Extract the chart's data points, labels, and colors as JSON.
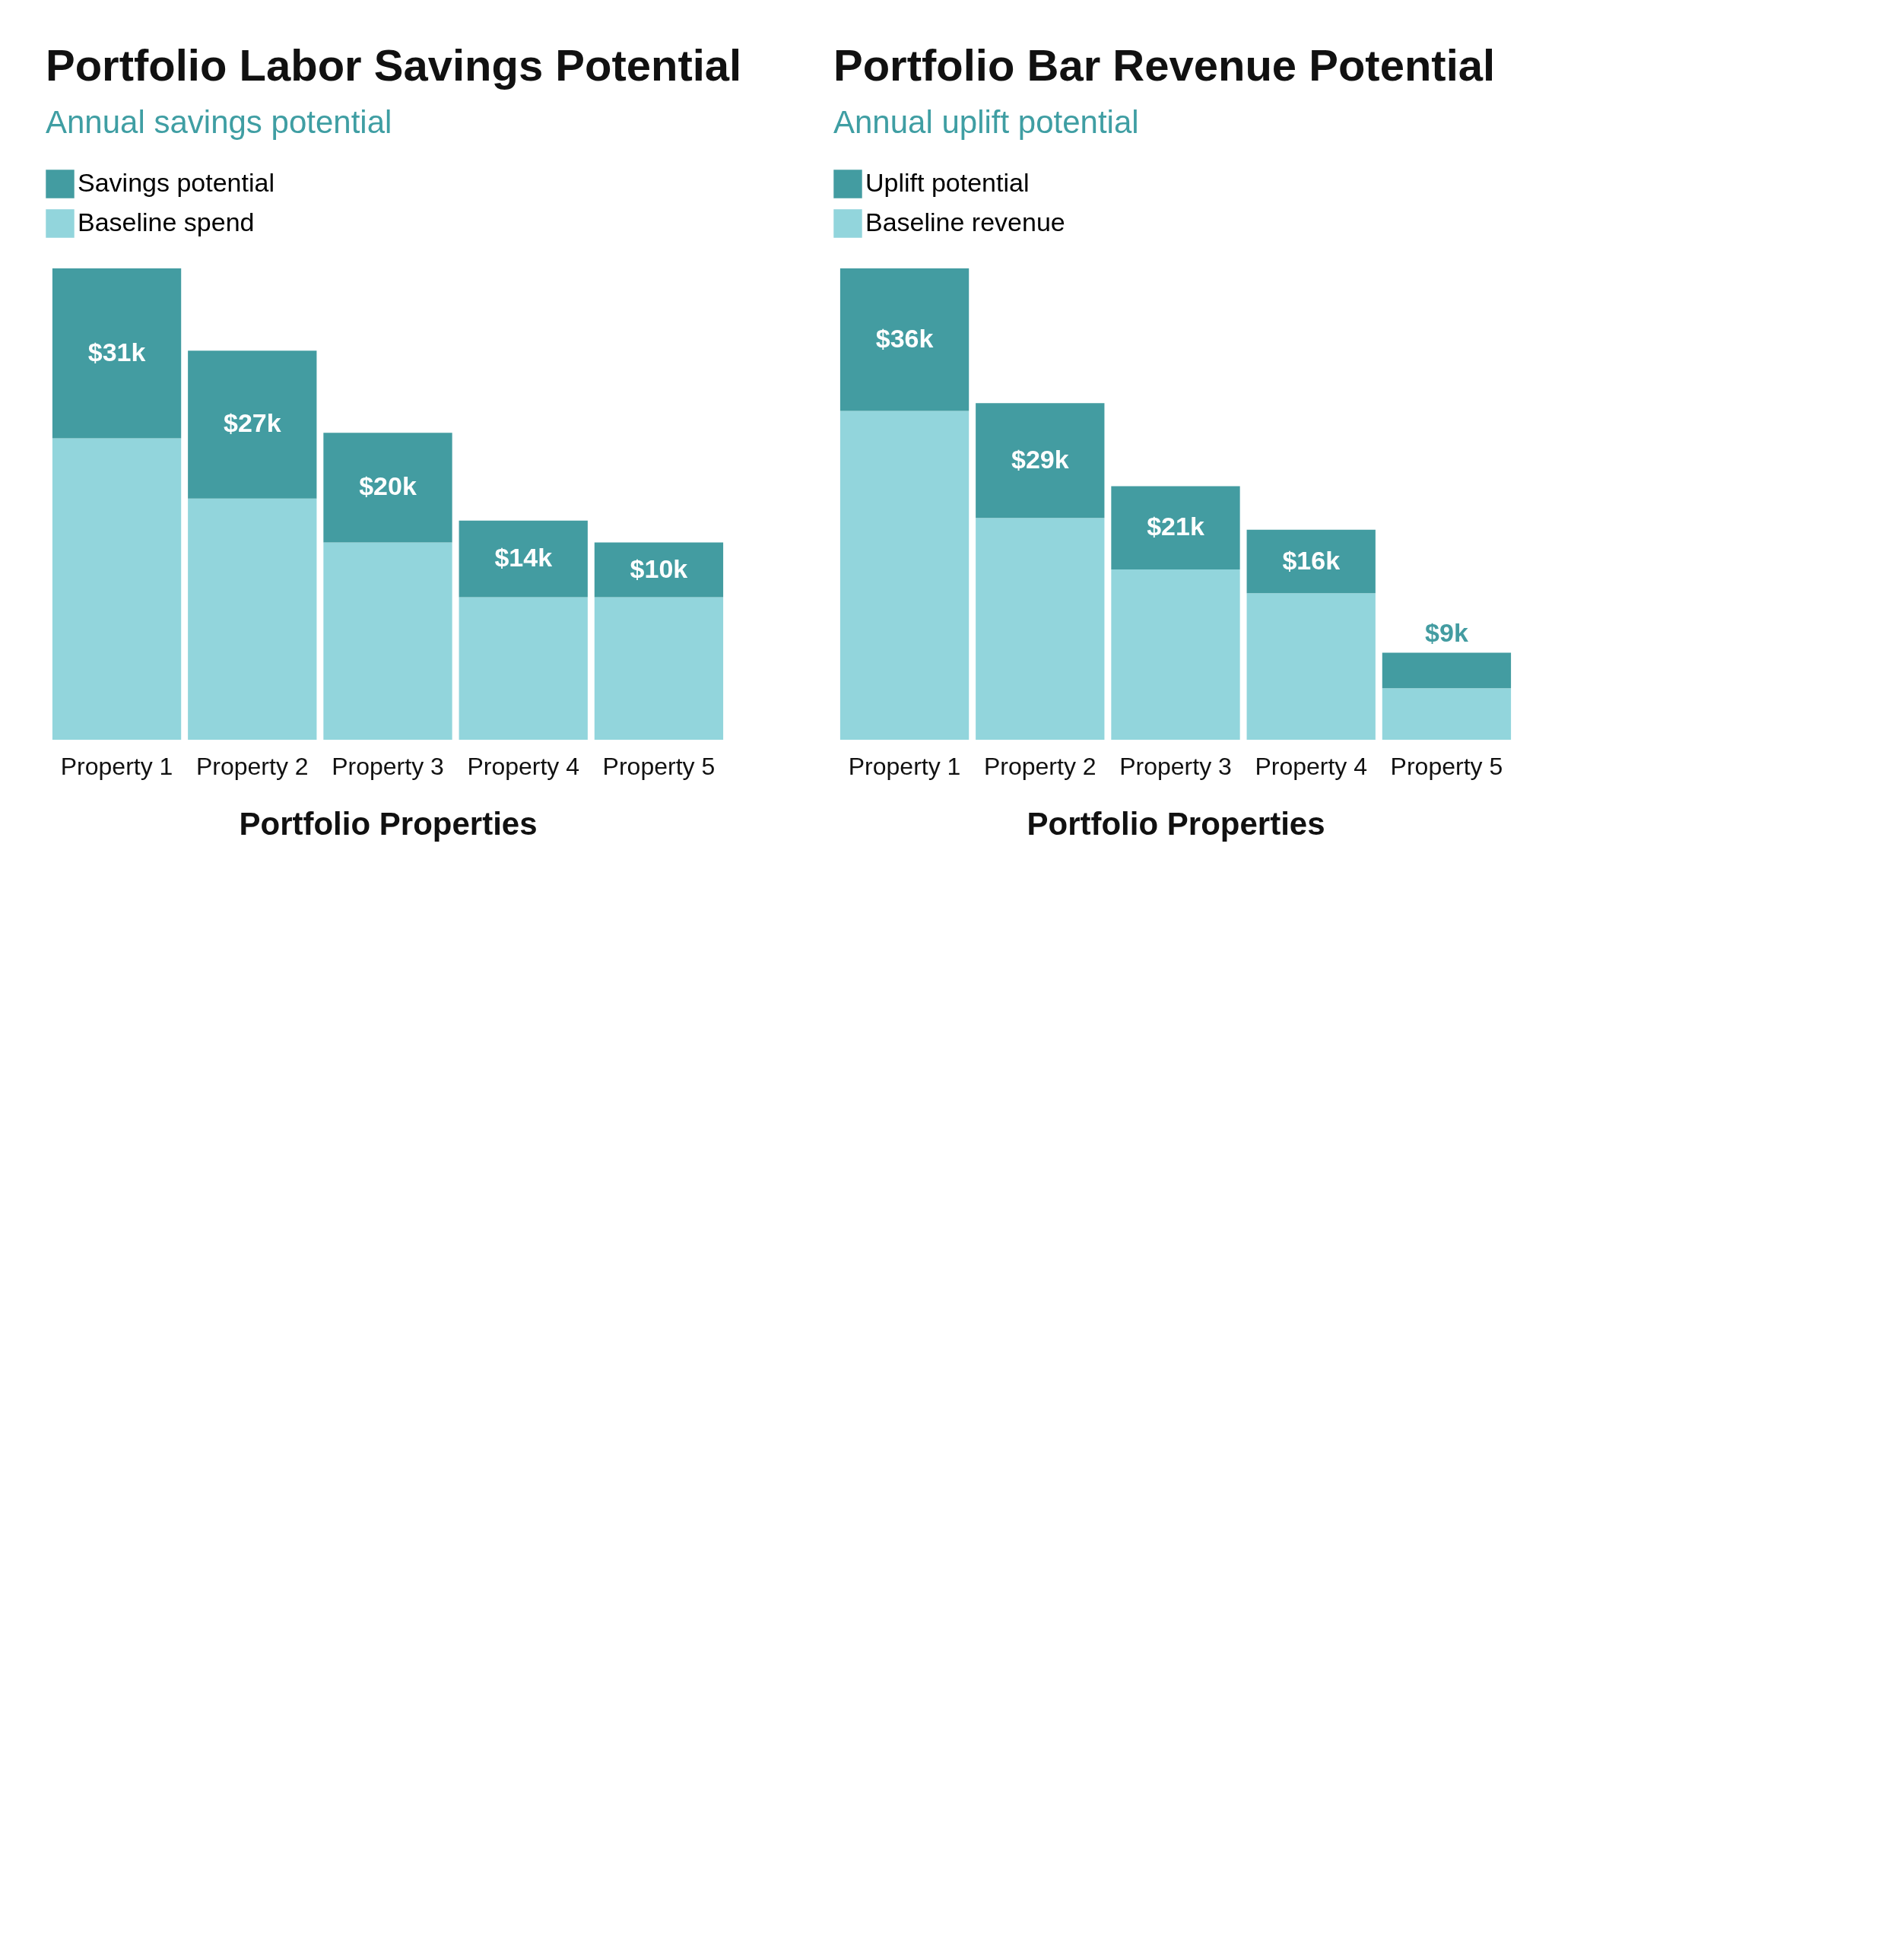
{
  "chart_data": [
    {
      "type": "bar",
      "title": "Portfolio Labor Savings Potential",
      "subtitle": "Annual savings potential",
      "xlabel": "Portfolio Properties",
      "categories": [
        "Property 1",
        "Property 2",
        "Property 3",
        "Property 4",
        "Property 5"
      ],
      "stacked": true,
      "legend": "top left",
      "series": [
        {
          "name": "Baseline spend",
          "color": "#92d5dc",
          "values": [
            55,
            44,
            36,
            26,
            26
          ]
        },
        {
          "name": "Savings potential",
          "color": "#439ca1",
          "values": [
            31,
            27,
            20,
            14,
            10
          ],
          "value_labels": [
            "$31k",
            "$27k",
            "$20k",
            "$14k",
            "$10k"
          ]
        }
      ]
    },
    {
      "type": "bar",
      "title": "Portfolio Bar Revenue Potential",
      "subtitle": "Annual uplift potential",
      "xlabel": "Portfolio Properties",
      "categories": [
        "Property 1",
        "Property 2",
        "Property 3",
        "Property 4",
        "Property 5"
      ],
      "stacked": true,
      "legend": "top left",
      "series": [
        {
          "name": "Baseline revenue",
          "color": "#92d5dc",
          "values": [
            83,
            56,
            43,
            37,
            13
          ]
        },
        {
          "name": "Uplift potential",
          "color": "#439ca1",
          "values": [
            36,
            29,
            21,
            16,
            9
          ],
          "value_labels": [
            "$36k",
            "$29k",
            "$21k",
            "$16k",
            "$9k"
          ]
        }
      ]
    }
  ]
}
